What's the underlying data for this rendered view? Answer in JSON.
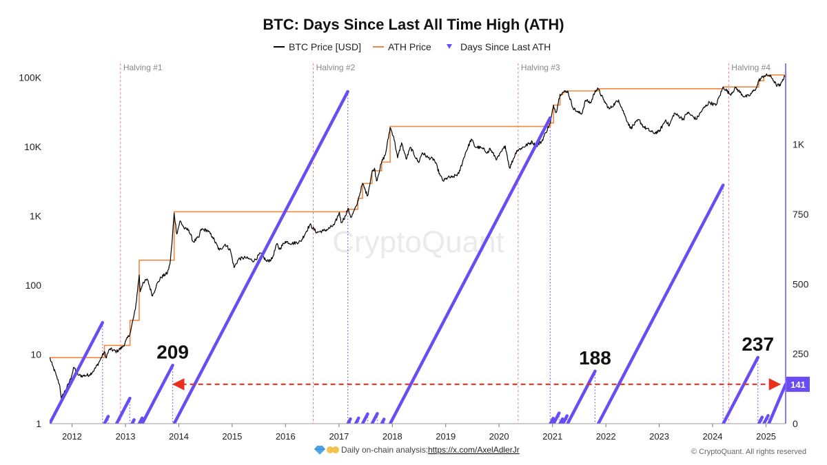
{
  "chart_data": {
    "type": "line",
    "title": "BTC: Days Since Last All Time High (ATH)",
    "legend": {
      "placement": "top-center",
      "entries": [
        {
          "name": "BTC Price [USD]",
          "color": "#000000",
          "style": "line"
        },
        {
          "name": "ATH Price",
          "color": "#f0883e",
          "style": "line"
        },
        {
          "name": "Days Since Last ATH",
          "color": "#6a4cf5",
          "style": "dotted-marker"
        }
      ]
    },
    "x_axis": {
      "type": "date",
      "range": [
        "2011-08-01",
        "2025-05-15"
      ],
      "tick_labels": [
        "2012",
        "2013",
        "2014",
        "2015",
        "2016",
        "2017",
        "2018",
        "2019",
        "2020",
        "2021",
        "2022",
        "2023",
        "2024",
        "2025"
      ]
    },
    "y_axis_left": {
      "scale": "log",
      "label": "",
      "range": [
        1,
        160000
      ],
      "ticks": [
        {
          "value": 1,
          "label": "1"
        },
        {
          "value": 10,
          "label": "10"
        },
        {
          "value": 100,
          "label": "100"
        },
        {
          "value": 1000,
          "label": "1K"
        },
        {
          "value": 10000,
          "label": "10K"
        },
        {
          "value": 100000,
          "label": "100K"
        }
      ]
    },
    "y_axis_right": {
      "scale": "linear",
      "label": "",
      "range": [
        0,
        1290
      ],
      "ticks": [
        {
          "value": 0,
          "label": "0"
        },
        {
          "value": 250,
          "label": "250"
        },
        {
          "value": 500,
          "label": "500"
        },
        {
          "value": 750,
          "label": "750"
        },
        {
          "value": 1000,
          "label": "1K"
        }
      ]
    },
    "grid": false,
    "halvings": [
      {
        "label": "Halving #1",
        "date": "2012-11-28"
      },
      {
        "label": "Halving #2",
        "date": "2016-07-09"
      },
      {
        "label": "Halving #3",
        "date": "2020-05-11"
      },
      {
        "label": "Halving #4",
        "date": "2024-04-20"
      }
    ],
    "series": [
      {
        "name": "BTC Price [USD]",
        "axis": "left",
        "color": "#000000",
        "points": [
          [
            "2011-08-01",
            9
          ],
          [
            "2011-08-20",
            7
          ],
          [
            "2011-09-15",
            5
          ],
          [
            "2011-10-10",
            3.5
          ],
          [
            "2011-10-20",
            2.3
          ],
          [
            "2011-11-15",
            3
          ],
          [
            "2011-12-15",
            4
          ],
          [
            "2012-01-15",
            6.5
          ],
          [
            "2012-02-15",
            5
          ],
          [
            "2012-03-15",
            4.9
          ],
          [
            "2012-05-01",
            5.1
          ],
          [
            "2012-06-01",
            6
          ],
          [
            "2012-07-01",
            7.5
          ],
          [
            "2012-08-10",
            11
          ],
          [
            "2012-08-20",
            9
          ],
          [
            "2012-09-15",
            12
          ],
          [
            "2012-11-01",
            11
          ],
          [
            "2012-12-15",
            13
          ],
          [
            "2013-02-01",
            20
          ],
          [
            "2013-03-10",
            45
          ],
          [
            "2013-04-05",
            140
          ],
          [
            "2013-04-12",
            80
          ],
          [
            "2013-05-01",
            110
          ],
          [
            "2013-06-01",
            120
          ],
          [
            "2013-07-05",
            70
          ],
          [
            "2013-08-01",
            100
          ],
          [
            "2013-09-01",
            130
          ],
          [
            "2013-10-15",
            150
          ],
          [
            "2013-11-01",
            200
          ],
          [
            "2013-11-15",
            400
          ],
          [
            "2013-11-30",
            1100
          ],
          [
            "2013-12-18",
            550
          ],
          [
            "2014-01-10",
            850
          ],
          [
            "2014-02-10",
            650
          ],
          [
            "2014-03-10",
            630
          ],
          [
            "2014-04-10",
            420
          ],
          [
            "2014-05-20",
            500
          ],
          [
            "2014-06-01",
            640
          ],
          [
            "2014-07-15",
            620
          ],
          [
            "2014-08-20",
            500
          ],
          [
            "2014-10-05",
            320
          ],
          [
            "2014-11-15",
            390
          ],
          [
            "2014-12-20",
            320
          ],
          [
            "2015-01-14",
            180
          ],
          [
            "2015-02-15",
            240
          ],
          [
            "2015-04-01",
            250
          ],
          [
            "2015-06-01",
            225
          ],
          [
            "2015-07-15",
            290
          ],
          [
            "2015-08-25",
            220
          ],
          [
            "2015-10-01",
            240
          ],
          [
            "2015-11-04",
            400
          ],
          [
            "2015-11-20",
            330
          ],
          [
            "2015-12-31",
            430
          ],
          [
            "2016-02-15",
            400
          ],
          [
            "2016-04-15",
            430
          ],
          [
            "2016-06-16",
            750
          ],
          [
            "2016-08-01",
            580
          ],
          [
            "2016-09-15",
            610
          ],
          [
            "2016-10-15",
            640
          ],
          [
            "2016-12-01",
            750
          ],
          [
            "2017-01-04",
            1130
          ],
          [
            "2017-01-15",
            800
          ],
          [
            "2017-02-15",
            1000
          ],
          [
            "2017-03-03",
            1280
          ],
          [
            "2017-03-25",
            950
          ],
          [
            "2017-05-01",
            1400
          ],
          [
            "2017-06-11",
            2950
          ],
          [
            "2017-07-15",
            1950
          ],
          [
            "2017-08-15",
            4300
          ],
          [
            "2017-09-01",
            4900
          ],
          [
            "2017-09-15",
            3200
          ],
          [
            "2017-10-20",
            6000
          ],
          [
            "2017-11-15",
            7800
          ],
          [
            "2017-12-17",
            19000
          ],
          [
            "2018-01-10",
            14000
          ],
          [
            "2018-02-06",
            6900
          ],
          [
            "2018-03-05",
            11400
          ],
          [
            "2018-04-06",
            6600
          ],
          [
            "2018-05-05",
            9800
          ],
          [
            "2018-06-29",
            5900
          ],
          [
            "2018-07-25",
            8200
          ],
          [
            "2018-09-01",
            7000
          ],
          [
            "2018-10-15",
            6500
          ],
          [
            "2018-11-25",
            3800
          ],
          [
            "2018-12-15",
            3200
          ],
          [
            "2019-01-15",
            3600
          ],
          [
            "2019-02-15",
            3600
          ],
          [
            "2019-04-01",
            4100
          ],
          [
            "2019-05-15",
            8000
          ],
          [
            "2019-06-26",
            12900
          ],
          [
            "2019-07-20",
            10000
          ],
          [
            "2019-09-01",
            9600
          ],
          [
            "2019-10-20",
            8200
          ],
          [
            "2019-10-28",
            9500
          ],
          [
            "2019-12-17",
            6600
          ],
          [
            "2020-02-13",
            10300
          ],
          [
            "2020-03-13",
            4900
          ],
          [
            "2020-05-01",
            8800
          ],
          [
            "2020-06-01",
            9500
          ],
          [
            "2020-08-15",
            11800
          ],
          [
            "2020-09-10",
            10200
          ],
          [
            "2020-10-20",
            12000
          ],
          [
            "2020-11-15",
            16000
          ],
          [
            "2020-12-17",
            22000
          ],
          [
            "2021-01-08",
            40000
          ],
          [
            "2021-01-25",
            31000
          ],
          [
            "2021-02-21",
            57000
          ],
          [
            "2021-03-13",
            61000
          ],
          [
            "2021-04-14",
            64000
          ],
          [
            "2021-05-20",
            37000
          ],
          [
            "2021-06-22",
            31500
          ],
          [
            "2021-07-20",
            30000
          ],
          [
            "2021-08-15",
            47000
          ],
          [
            "2021-09-20",
            43000
          ],
          [
            "2021-10-20",
            65000
          ],
          [
            "2021-11-10",
            68000
          ],
          [
            "2021-12-15",
            48000
          ],
          [
            "2022-01-24",
            35000
          ],
          [
            "2022-03-29",
            47500
          ],
          [
            "2022-05-12",
            28000
          ],
          [
            "2022-06-18",
            18500
          ],
          [
            "2022-08-15",
            24500
          ],
          [
            "2022-09-15",
            19500
          ],
          [
            "2022-11-21",
            15800
          ],
          [
            "2022-12-31",
            16500
          ],
          [
            "2023-02-15",
            24500
          ],
          [
            "2023-03-10",
            20000
          ],
          [
            "2023-04-14",
            30500
          ],
          [
            "2023-06-15",
            25000
          ],
          [
            "2023-07-13",
            31300
          ],
          [
            "2023-09-11",
            25000
          ],
          [
            "2023-10-25",
            34500
          ],
          [
            "2023-12-10",
            44000
          ],
          [
            "2024-01-23",
            39500
          ],
          [
            "2024-03-14",
            73000
          ],
          [
            "2024-05-01",
            57000
          ],
          [
            "2024-06-07",
            71000
          ],
          [
            "2024-08-05",
            53000
          ],
          [
            "2024-09-06",
            54000
          ],
          [
            "2024-10-29",
            72000
          ],
          [
            "2024-11-12",
            90000
          ],
          [
            "2024-12-17",
            106000
          ],
          [
            "2025-01-20",
            108000
          ],
          [
            "2025-02-15",
            96000
          ],
          [
            "2025-03-11",
            78000
          ],
          [
            "2025-04-08",
            76000
          ],
          [
            "2025-04-25",
            94000
          ],
          [
            "2025-05-10",
            103000
          ]
        ]
      },
      {
        "name": "ATH Price",
        "axis": "left",
        "color": "#f0883e",
        "steps": [
          [
            "2011-08-01",
            9
          ],
          [
            "2012-08-10",
            13.5
          ],
          [
            "2013-02-01",
            31
          ],
          [
            "2013-04-05",
            230
          ],
          [
            "2013-11-30",
            1150
          ],
          [
            "2017-03-03",
            1250
          ],
          [
            "2017-05-10",
            1800
          ],
          [
            "2017-06-11",
            2950
          ],
          [
            "2017-08-15",
            4500
          ],
          [
            "2017-10-20",
            6000
          ],
          [
            "2017-12-17",
            19600
          ],
          [
            "2020-12-17",
            22000
          ],
          [
            "2021-01-08",
            40000
          ],
          [
            "2021-02-21",
            57000
          ],
          [
            "2021-03-13",
            61000
          ],
          [
            "2021-04-14",
            64000
          ],
          [
            "2021-11-10",
            68800
          ],
          [
            "2024-03-14",
            73000
          ],
          [
            "2024-11-12",
            90000
          ],
          [
            "2024-12-17",
            106000
          ],
          [
            "2025-01-20",
            109000
          ],
          [
            "2025-05-15",
            109000
          ]
        ]
      },
      {
        "name": "Days Since Last ATH",
        "axis": "right",
        "color": "#6a4cf5",
        "segments": [
          {
            "start": "2011-08-01",
            "end": "2012-07-28",
            "max_days": 362
          },
          {
            "start": "2012-08-10",
            "end": "2012-09-05",
            "max_days": 26
          },
          {
            "start": "2012-11-01",
            "end": "2013-01-31",
            "max_days": 91
          },
          {
            "start": "2013-02-15",
            "end": "2013-03-01",
            "max_days": 14
          },
          {
            "start": "2013-04-05",
            "end": "2013-04-25",
            "max_days": 20
          },
          {
            "start": "2013-04-25",
            "end": "2013-11-20",
            "max_days": 209
          },
          {
            "start": "2013-11-30",
            "end": "2017-03-02",
            "max_days": 1189
          },
          {
            "start": "2017-03-03",
            "end": "2017-03-20",
            "max_days": 17
          },
          {
            "start": "2017-04-25",
            "end": "2017-05-15",
            "max_days": 20
          },
          {
            "start": "2017-06-11",
            "end": "2017-07-16",
            "max_days": 35
          },
          {
            "start": "2017-08-15",
            "end": "2017-09-20",
            "max_days": 36
          },
          {
            "start": "2017-10-20",
            "end": "2017-11-05",
            "max_days": 16
          },
          {
            "start": "2017-12-17",
            "end": "2020-12-16",
            "max_days": 1095
          },
          {
            "start": "2020-12-17",
            "end": "2021-01-05",
            "max_days": 19
          },
          {
            "start": "2021-01-08",
            "end": "2021-02-15",
            "max_days": 38
          },
          {
            "start": "2021-02-21",
            "end": "2021-03-10",
            "max_days": 17
          },
          {
            "start": "2021-03-13",
            "end": "2021-04-10",
            "max_days": 28
          },
          {
            "start": "2021-04-14",
            "end": "2021-10-19",
            "max_days": 188
          },
          {
            "start": "2021-11-10",
            "end": "2024-03-13",
            "max_days": 854
          },
          {
            "start": "2024-03-14",
            "end": "2024-11-06",
            "max_days": 237
          },
          {
            "start": "2024-11-12",
            "end": "2024-12-05",
            "max_days": 23
          },
          {
            "start": "2024-12-17",
            "end": "2025-01-15",
            "max_days": 29
          },
          {
            "start": "2025-01-20",
            "end": "2025-05-15",
            "max_days": 141
          }
        ]
      }
    ],
    "annotations": [
      {
        "text": "209",
        "date": "2013-11-20",
        "days": 209
      },
      {
        "text": "188",
        "date": "2021-10-19",
        "days": 188
      },
      {
        "text": "237",
        "date": "2024-11-06",
        "days": 237
      }
    ],
    "current_value_badge": {
      "text": "141",
      "days": 141,
      "color": "#6a4cf5"
    },
    "reference_line": {
      "days": 141,
      "from_date": "2013-11-25",
      "to_date": "2025-04-05",
      "color": "#e8321e",
      "style": "dashed-double-arrow"
    }
  },
  "watermark": "CryptoQuant",
  "footer": {
    "icons": [
      "gem-icon",
      "raised-hands-icon"
    ],
    "text": "Daily on-chain analysis: ",
    "link": "https://x.com/AxelAdlerJr",
    "copyright": "© CryptoQuant. All rights reserved"
  }
}
